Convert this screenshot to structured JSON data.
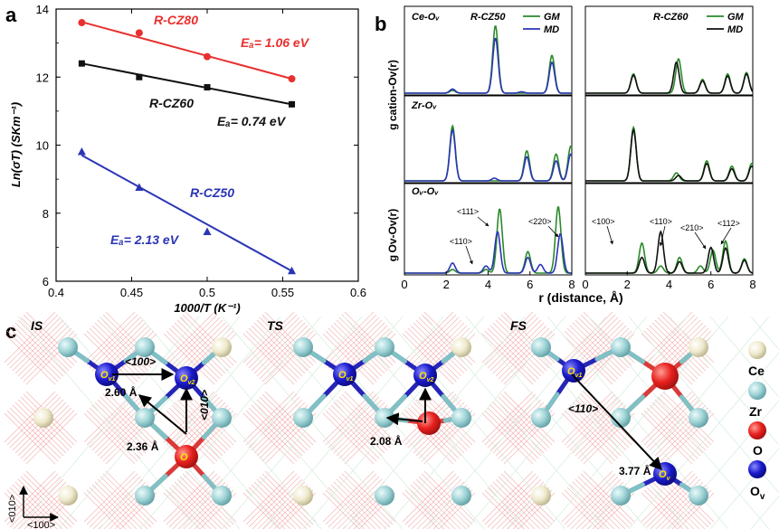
{
  "panel_labels": {
    "a": "a",
    "b": "b",
    "c": "c"
  },
  "chart_data": [
    {
      "type": "line",
      "title": "",
      "xlabel": "1000/T (K⁻¹)",
      "ylabel": "Ln(σT) (SKm⁻¹)",
      "xlim": [
        0.4,
        0.6
      ],
      "ylim": [
        6,
        14
      ],
      "xticks": [
        "0.4",
        "0.45",
        "0.5",
        "0.55",
        "0.6"
      ],
      "yticks": [
        "6",
        "8",
        "10",
        "12",
        "14"
      ],
      "series": [
        {
          "name": "R-CZ80",
          "ea": "Eₐ= 1.06 eV",
          "color": "#e8302e",
          "marker": "circle",
          "x": [
            0.417,
            0.455,
            0.5,
            0.556
          ],
          "y": [
            13.6,
            13.3,
            12.6,
            11.95
          ],
          "fit": {
            "x": [
              0.417,
              0.556
            ],
            "y": [
              13.62,
              11.95
            ]
          }
        },
        {
          "name": "R-CZ60",
          "ea": "Eₐ= 0.74 eV",
          "color": "#111111",
          "marker": "square",
          "x": [
            0.417,
            0.455,
            0.5,
            0.556
          ],
          "y": [
            12.4,
            12.0,
            11.7,
            11.2
          ],
          "fit": {
            "x": [
              0.417,
              0.556
            ],
            "y": [
              12.4,
              11.2
            ]
          }
        },
        {
          "name": "R-CZ50",
          "ea": "Eₐ= 2.13 eV",
          "color": "#2a35b5",
          "marker": "triangle",
          "x": [
            0.417,
            0.455,
            0.5,
            0.556
          ],
          "y": [
            9.8,
            8.75,
            7.45,
            6.3
          ],
          "fit": {
            "x": [
              0.417,
              0.556
            ],
            "y": [
              9.7,
              6.3
            ]
          }
        }
      ]
    },
    {
      "type": "line",
      "layout": "grid 3x2",
      "xlabel": "r (distance, Å)",
      "xlim": [
        0,
        8
      ],
      "xticks": [
        "0",
        "2",
        "4",
        "6",
        "8"
      ],
      "ylabels": [
        "g cation-Ov(r)",
        "g Ov-Ov(r)"
      ],
      "column_titles": [
        "R-CZ50",
        "R-CZ60"
      ],
      "row_titles": [
        "Ce-Oᵥ",
        "Zr-Oᵥ",
        "Oᵥ-Oᵥ"
      ],
      "legends": [
        {
          "column": "R-CZ50",
          "entries": [
            {
              "name": "GM",
              "color": "#2a8a2a"
            },
            {
              "name": "MD",
              "color": "#2a35b5"
            }
          ]
        },
        {
          "column": "R-CZ60",
          "entries": [
            {
              "name": "GM",
              "color": "#2a8a2a"
            },
            {
              "name": "MD",
              "color": "#111111"
            }
          ]
        }
      ],
      "panels": [
        {
          "row": "Ce-Ov",
          "col": "R-CZ50",
          "ymax": 1.0,
          "GM": [
            [
              2.3,
              0.04
            ],
            [
              4.35,
              0.98
            ],
            [
              7.05,
              0.55
            ]
          ],
          "MD": [
            [
              2.3,
              0.06
            ],
            [
              4.35,
              0.8
            ],
            [
              7.05,
              0.45
            ],
            [
              5.6,
              0.02
            ]
          ]
        },
        {
          "row": "Ce-Ov",
          "col": "R-CZ60",
          "ymax": 1.0,
          "GM": [
            [
              2.3,
              0.28
            ],
            [
              4.45,
              0.5
            ],
            [
              5.6,
              0.2
            ],
            [
              6.8,
              0.28
            ],
            [
              7.7,
              0.3
            ]
          ],
          "MD": [
            [
              2.3,
              0.26
            ],
            [
              4.35,
              0.45
            ],
            [
              5.6,
              0.18
            ],
            [
              6.8,
              0.25
            ],
            [
              7.7,
              0.28
            ]
          ]
        },
        {
          "row": "Zr-Ov",
          "col": "R-CZ50",
          "ymax": 1.0,
          "GM": [
            [
              2.3,
              0.82
            ],
            [
              5.85,
              0.45
            ],
            [
              7.25,
              0.4
            ],
            [
              7.95,
              0.52
            ]
          ],
          "MD": [
            [
              2.3,
              0.76
            ],
            [
              5.85,
              0.36
            ],
            [
              7.25,
              0.3
            ],
            [
              7.95,
              0.4
            ],
            [
              4.3,
              0.04
            ]
          ]
        },
        {
          "row": "Zr-Ov",
          "col": "R-CZ60",
          "ymax": 1.0,
          "GM": [
            [
              2.3,
              0.8
            ],
            [
              4.35,
              0.12
            ],
            [
              5.8,
              0.3
            ],
            [
              7.0,
              0.22
            ],
            [
              7.95,
              0.26
            ]
          ],
          "MD": [
            [
              2.3,
              0.76
            ],
            [
              4.45,
              0.08
            ],
            [
              5.8,
              0.26
            ],
            [
              7.0,
              0.18
            ],
            [
              7.95,
              0.22
            ]
          ]
        },
        {
          "row": "Ov-Ov",
          "col": "R-CZ50",
          "ymax": 1.0,
          "GM": [
            [
              2.3,
              0.05
            ],
            [
              3.9,
              0.05
            ],
            [
              4.55,
              0.9
            ],
            [
              5.9,
              0.3
            ],
            [
              7.35,
              0.93
            ]
          ],
          "MD": [
            [
              2.3,
              0.14
            ],
            [
              3.9,
              0.1
            ],
            [
              4.45,
              0.58
            ],
            [
              5.9,
              0.22
            ],
            [
              6.5,
              0.12
            ],
            [
              7.45,
              0.55
            ]
          ]
        },
        {
          "row": "Ov-Ov",
          "col": "R-CZ60",
          "ymax": 1.0,
          "GM": [
            [
              2.7,
              0.42
            ],
            [
              3.6,
              0.1
            ],
            [
              4.5,
              0.22
            ],
            [
              5.5,
              0.1
            ],
            [
              6.1,
              0.32
            ],
            [
              6.7,
              0.45
            ],
            [
              7.6,
              0.2
            ]
          ],
          "MD": [
            [
              2.7,
              0.22
            ],
            [
              3.6,
              0.58
            ],
            [
              4.5,
              0.16
            ],
            [
              6.0,
              0.36
            ],
            [
              6.7,
              0.35
            ],
            [
              7.6,
              0.18
            ]
          ]
        }
      ],
      "annotations": [
        "<111>",
        "<110>",
        "<220>",
        "<100>",
        "<110>",
        "<210>",
        "<112>"
      ]
    }
  ],
  "structure": {
    "stages": [
      "IS",
      "TS",
      "FS"
    ],
    "ov_labels": {
      "ov1": "O",
      "ov1_sub": "v1",
      "ov2": "O",
      "ov2_sub": "v2",
      "ov": "O",
      "ov_sub": "v"
    },
    "vectors": {
      "v100": "<100>",
      "v010": "<010>",
      "v110": "<110>"
    },
    "distances": {
      "d1": "2.60 Å",
      "d2": "2.36 Å",
      "d3": "2.08 Å",
      "d4": "3.77 Å"
    },
    "axes": {
      "x": "<100>",
      "y": "<010>"
    },
    "legend": [
      {
        "name": "Ce",
        "color": "#9fd3d6"
      },
      {
        "name": "Zr",
        "color": "#efeacd"
      },
      {
        "name": "O",
        "color": "#e8201e"
      },
      {
        "name": "Oᵥ",
        "label": "O",
        "sub": "v",
        "color": "#1a1acc"
      }
    ],
    "colors": {
      "ce": "#9fd3d6",
      "zr": "#efeacd",
      "o": "#e8201e",
      "ov": "#1a1acc",
      "bond": "#e9a0a0"
    }
  }
}
